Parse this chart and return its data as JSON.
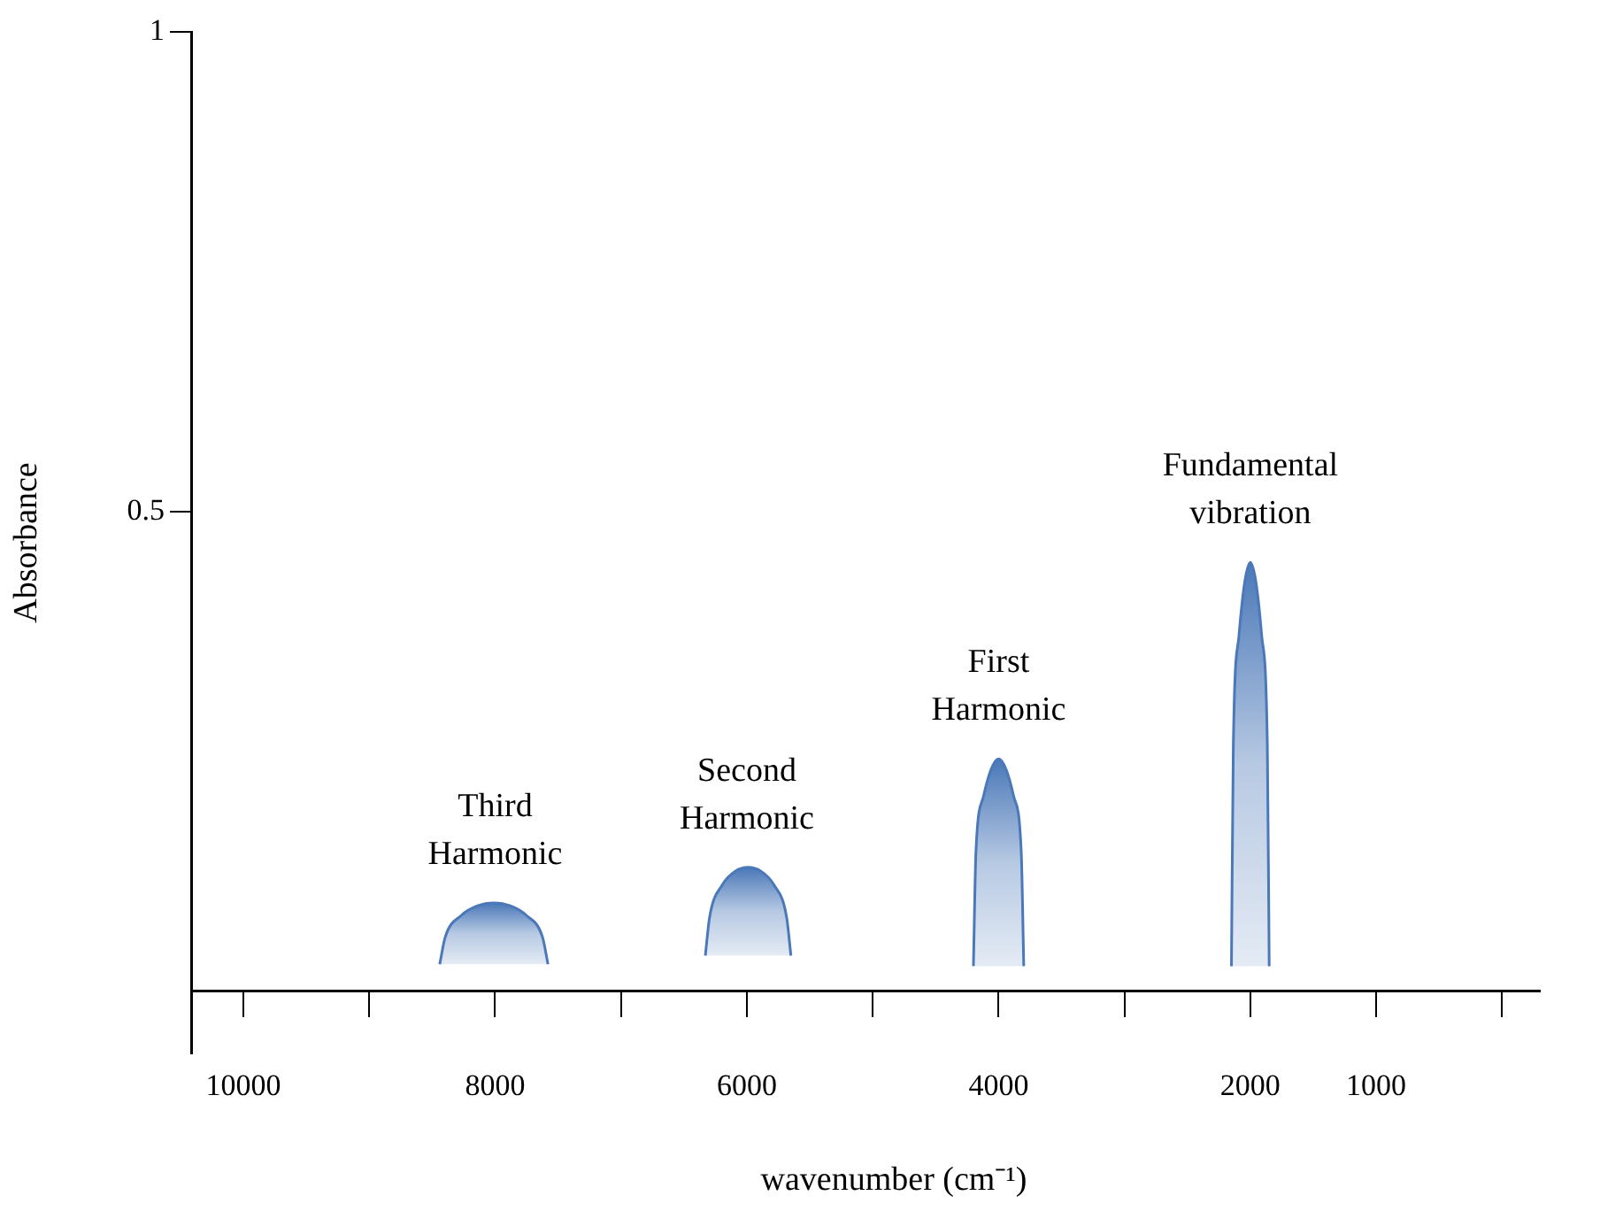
{
  "chart_data": {
    "type": "area",
    "xlabel": "wavenumber (cm⁻¹)",
    "ylabel": "Absorbance",
    "xlim": [
      10415,
      -300
    ],
    "xticks": [
      10000,
      {
        "value": 9000,
        "label": null
      },
      8000,
      {
        "value": 7000,
        "label": null
      },
      6000,
      {
        "value": 5000,
        "label": null
      },
      4000,
      {
        "value": 3000,
        "label": null
      },
      2000,
      1000,
      {
        "value": 0,
        "label": null
      }
    ],
    "ylim": [
      -0.065,
      1
    ],
    "yticks": [
      0.5,
      1
    ],
    "grid": false,
    "legend": false,
    "series": [
      {
        "color": "#4a78b8",
        "x": [
          8440,
          8397,
          8268,
          8139,
          8010,
          7881,
          7752,
          7623,
          7580
        ],
        "values": [
          0.028,
          0.056,
          0.079,
          0.089,
          0.092,
          0.089,
          0.079,
          0.056,
          0.028
        ]
      },
      {
        "color": "#4a78b8",
        "x": [
          6330,
          6296,
          6194,
          6092,
          5990,
          5888,
          5786,
          5684,
          5650
        ],
        "values": [
          0.037,
          0.077,
          0.111,
          0.125,
          0.129,
          0.125,
          0.111,
          0.077,
          0.037
        ]
      },
      {
        "color": "#4a78b8",
        "x": [
          4200,
          4180,
          4120,
          4060,
          4000,
          3940,
          3880,
          3820,
          3800
        ],
        "values": [
          0.026,
          0.145,
          0.203,
          0.231,
          0.242,
          0.231,
          0.203,
          0.145,
          0.026
        ]
      },
      {
        "color": "#4a78b8",
        "x": [
          2150,
          2135,
          2090,
          2045,
          2000,
          1955,
          1910,
          1865,
          1850
        ],
        "values": [
          0.026,
          0.258,
          0.371,
          0.426,
          0.447,
          0.426,
          0.371,
          0.258,
          0.026
        ]
      }
    ],
    "annotations": [
      {
        "text": "Third Harmonic",
        "x": 8000,
        "y": 0.092
      },
      {
        "text": "Second Harmonic",
        "x": 6000,
        "y": 0.129
      },
      {
        "text": "First Harmonic",
        "x": 4000,
        "y": 0.242
      },
      {
        "text": "Fundamental vibration",
        "x": 2000,
        "y": 0.447
      }
    ]
  }
}
